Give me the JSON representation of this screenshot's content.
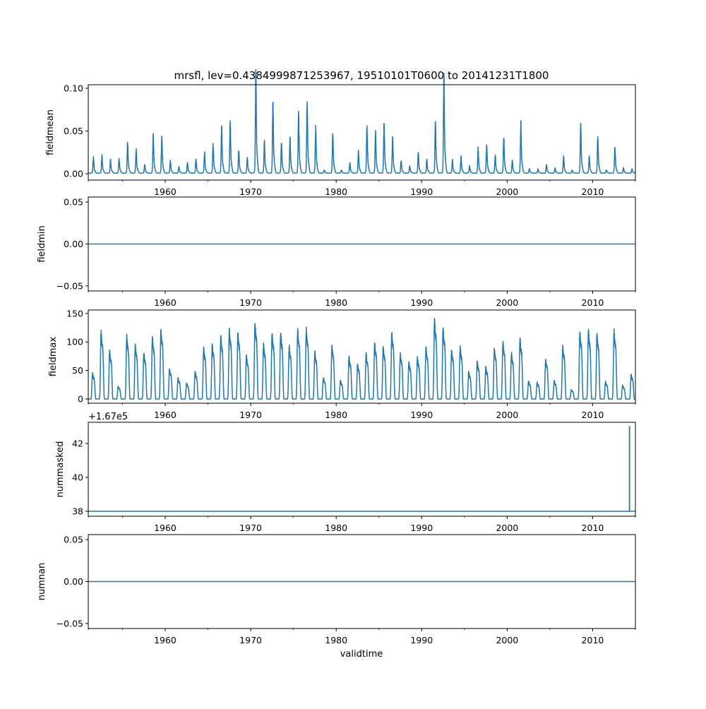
{
  "chart_data": {
    "type": "line",
    "title": "mrsfl, lev=0.4384999871253967, 19510101T0600 to 20141231T1800",
    "xlabel": "validtime",
    "xlim": [
      1951,
      2015
    ],
    "xticks": [
      1960,
      1970,
      1980,
      1990,
      2000,
      2010
    ],
    "line_color": "#1f77b4",
    "years": [
      1951,
      1952,
      1953,
      1954,
      1955,
      1956,
      1957,
      1958,
      1959,
      1960,
      1961,
      1962,
      1963,
      1964,
      1965,
      1966,
      1967,
      1968,
      1969,
      1970,
      1971,
      1972,
      1973,
      1974,
      1975,
      1976,
      1977,
      1978,
      1979,
      1980,
      1981,
      1982,
      1983,
      1984,
      1985,
      1986,
      1987,
      1988,
      1989,
      1990,
      1991,
      1992,
      1993,
      1994,
      1995,
      1996,
      1997,
      1998,
      1999,
      2000,
      2001,
      2002,
      2003,
      2004,
      2005,
      2006,
      2007,
      2008,
      2009,
      2010,
      2011,
      2012,
      2013,
      2014
    ],
    "panels": [
      {
        "ylabel": "fieldmean",
        "ylim": [
          -0.0074,
          0.1041
        ],
        "yticks": [
          0.0,
          0.05,
          0.1
        ],
        "ytick_labels": [
          "0.00",
          "0.05",
          "0.10"
        ],
        "kind": "peaks",
        "annual_peak": [
          0.015,
          0.017,
          0.013,
          0.014,
          0.03,
          0.023,
          0.008,
          0.037,
          0.035,
          0.012,
          0.006,
          0.01,
          0.013,
          0.02,
          0.029,
          0.045,
          0.05,
          0.022,
          0.015,
          0.099,
          0.031,
          0.07,
          0.029,
          0.034,
          0.059,
          0.07,
          0.045,
          0.003,
          0.038,
          0.003,
          0.01,
          0.021,
          0.046,
          0.04,
          0.049,
          0.034,
          0.012,
          0.007,
          0.02,
          0.013,
          0.051,
          0.097,
          0.013,
          0.016,
          0.007,
          0.024,
          0.028,
          0.018,
          0.036,
          0.012,
          0.048,
          0.004,
          0.004,
          0.008,
          0.005,
          0.016,
          0.003,
          0.047,
          0.016,
          0.035,
          0.003,
          0.026,
          0.005,
          0.004
        ]
      },
      {
        "ylabel": "fieldmin",
        "ylim": [
          -0.056,
          0.056
        ],
        "yticks": [
          -0.05,
          0.0,
          0.05
        ],
        "ytick_labels": [
          "−0.05",
          "0.00",
          "0.05"
        ],
        "kind": "constant",
        "value": 0
      },
      {
        "ylabel": "fieldmax",
        "ylim": [
          -7.4,
          156
        ],
        "yticks": [
          0,
          50,
          100,
          150
        ],
        "ytick_labels": [
          "0",
          "50",
          "100",
          "150"
        ],
        "kind": "plateaus",
        "annual_peak": [
          50,
          128,
          92,
          24,
          120,
          102,
          88,
          117,
          133,
          58,
          40,
          30,
          52,
          98,
          104,
          120,
          132,
          126,
          83,
          145,
          105,
          125,
          126,
          101,
          132,
          133,
          90,
          40,
          101,
          35,
          81,
          67,
          86,
          107,
          99,
          127,
          87,
          71,
          79,
          100,
          150,
          135,
          94,
          99,
          52,
          71,
          61,
          97,
          110,
          87,
          115,
          34,
          32,
          77,
          35,
          101,
          18,
          128,
          130,
          124,
          33,
          130,
          26,
          47
        ]
      },
      {
        "ylabel": "nummasked",
        "offset_label": "+1.67e5",
        "ylim": [
          37.71,
          43.25
        ],
        "yticks": [
          38,
          40,
          42
        ],
        "ytick_labels": [
          "38",
          "40",
          "42"
        ],
        "kind": "spike",
        "value": 38,
        "spike_time": 2014.3,
        "spike_value": 43
      },
      {
        "ylabel": "numnan",
        "ylim": [
          -0.056,
          0.056
        ],
        "yticks": [
          -0.05,
          0.0,
          0.05
        ],
        "ytick_labels": [
          "−0.05",
          "0.00",
          "0.05"
        ],
        "kind": "constant",
        "value": 0
      }
    ]
  }
}
